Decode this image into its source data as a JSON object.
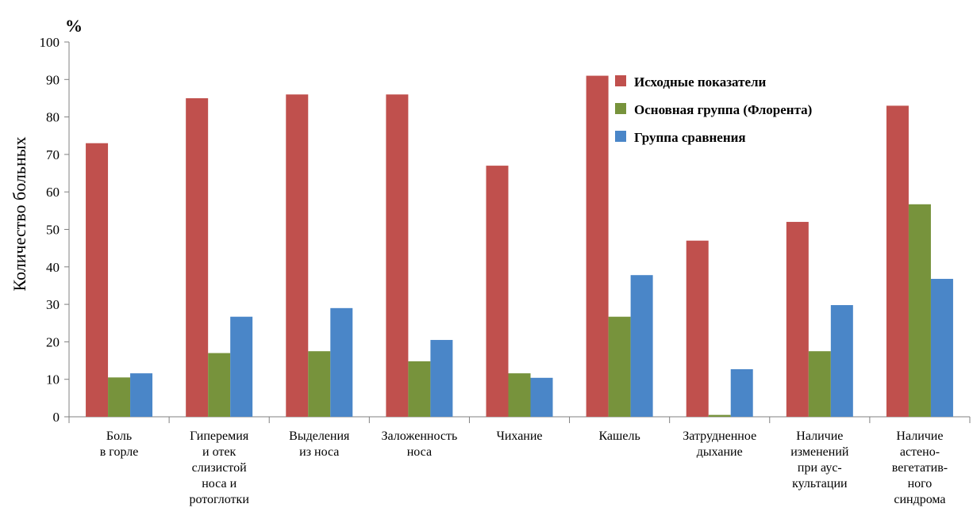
{
  "chart_data": {
    "type": "bar",
    "title": "",
    "unit_label": "%",
    "ylabel": "Количество больных",
    "xlabel": "",
    "ylim": [
      0,
      100
    ],
    "yticks": [
      0,
      10,
      20,
      30,
      40,
      50,
      60,
      70,
      80,
      90,
      100
    ],
    "grid": false,
    "legend_position": "top-right",
    "categories": [
      [
        "Боль",
        "в горле"
      ],
      [
        "Гиперемия",
        "и отек",
        "слизистой",
        "носа и",
        "ротоглотки"
      ],
      [
        "Выделения",
        "из носа"
      ],
      [
        "Заложенность",
        "носа"
      ],
      [
        "Чихание"
      ],
      [
        "Кашель"
      ],
      [
        "Затрудненное",
        "дыхание"
      ],
      [
        "Наличие",
        "изменений",
        "при аус-",
        "культации"
      ],
      [
        "Наличие",
        "астено-",
        "вегетатив-",
        "ного",
        "синдрома"
      ]
    ],
    "series": [
      {
        "name": "Исходные показатели",
        "color": "#c0504d",
        "values": [
          73,
          85,
          86,
          86,
          67,
          91,
          47,
          52,
          83
        ]
      },
      {
        "name": "Основная группа (Флорента)",
        "color": "#77933c",
        "values": [
          10.5,
          17,
          17.5,
          14.8,
          11.6,
          26.7,
          0.5,
          17.5,
          56.7
        ]
      },
      {
        "name": "Группа сравнения",
        "color": "#4a86c8",
        "values": [
          11.6,
          26.7,
          29,
          20.5,
          10.4,
          37.8,
          12.7,
          29.8,
          36.8
        ]
      }
    ]
  }
}
